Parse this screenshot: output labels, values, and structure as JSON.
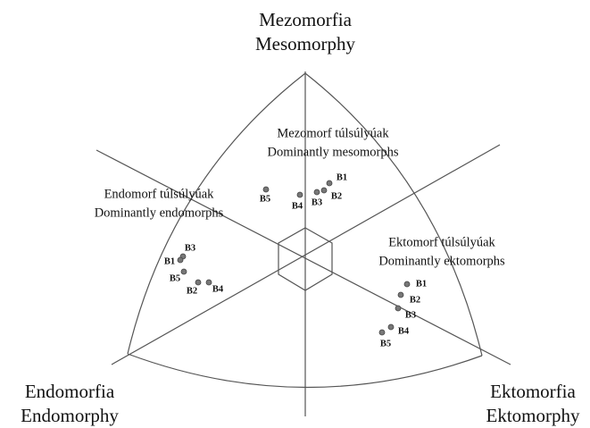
{
  "axes": {
    "top": [
      "Mezomorfia",
      "Mesomorphy"
    ],
    "left": [
      "Endomorfia",
      "Endomorphy"
    ],
    "right": [
      "Ektomorfia",
      "Ektomorphy"
    ]
  },
  "groups": [
    {
      "label": [
        "Mezomorf túlsúlyúak",
        "Dominantly mesomorphs"
      ],
      "points": [
        "B1",
        "B2",
        "B3",
        "B4",
        "B5"
      ]
    },
    {
      "label": [
        "Endomorf túlsúlyúak",
        "Dominantly endomorphs"
      ],
      "points": [
        "B3",
        "B1",
        "B5",
        "B2",
        "B4"
      ]
    },
    {
      "label": [
        "Ektomorf túlsúlyúak",
        "Dominantly ektomorphs"
      ],
      "points": [
        "B1",
        "B2",
        "B3",
        "B4",
        "B5"
      ]
    }
  ]
}
